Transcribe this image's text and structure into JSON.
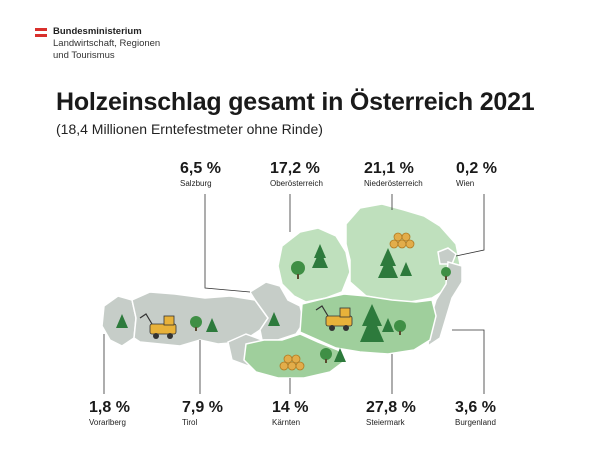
{
  "logo": {
    "line1": "Bundesministerium",
    "line2": "Landwirtschaft, Regionen",
    "line3": "und Tourismus",
    "flag_colors": [
      "#d9302c",
      "#ffffff",
      "#d9302c"
    ]
  },
  "title": "Holzeinschlag gesamt in Österreich 2021",
  "subtitle": "(18,4 Millionen Erntefestmeter ohne Rinde)",
  "colors": {
    "region_light": "#bfe0bd",
    "region_mid": "#9fcf9c",
    "region_grey": "#c6cdc8",
    "tree": "#2d7a3c",
    "timber": "#e2ad4a",
    "machine": "#e8b23a"
  },
  "regions": [
    {
      "key": "salzburg",
      "percent": "6,5 %",
      "name": "Salzburg"
    },
    {
      "key": "oberoesterreich",
      "percent": "17,2 %",
      "name": "Oberösterreich"
    },
    {
      "key": "niederoesterreich",
      "percent": "21,1 %",
      "name": "Niederösterreich"
    },
    {
      "key": "wien",
      "percent": "0,2 %",
      "name": "Wien"
    },
    {
      "key": "vorarlberg",
      "percent": "1,8 %",
      "name": "Vorarlberg"
    },
    {
      "key": "tirol",
      "percent": "7,9 %",
      "name": "Tirol"
    },
    {
      "key": "kaernten",
      "percent": "14 %",
      "name": "Kärnten"
    },
    {
      "key": "steiermark",
      "percent": "27,8 %",
      "name": "Steiermark"
    },
    {
      "key": "burgenland",
      "percent": "3,6 %",
      "name": "Burgenland"
    }
  ]
}
